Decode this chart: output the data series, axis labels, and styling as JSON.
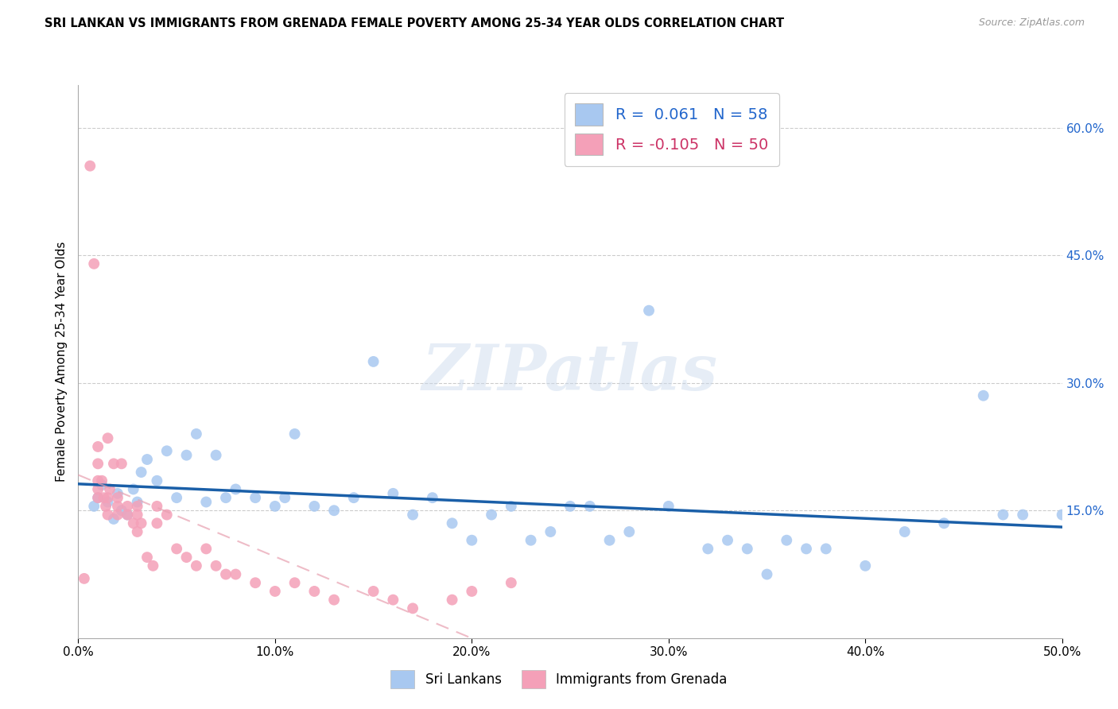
{
  "title": "SRI LANKAN VS IMMIGRANTS FROM GRENADA FEMALE POVERTY AMONG 25-34 YEAR OLDS CORRELATION CHART",
  "source": "Source: ZipAtlas.com",
  "ylabel": "Female Poverty Among 25-34 Year Olds",
  "xlim": [
    0.0,
    0.5
  ],
  "ylim": [
    0.0,
    0.65
  ],
  "xticks": [
    0.0,
    0.1,
    0.2,
    0.3,
    0.4,
    0.5
  ],
  "yticks_right": [
    0.15,
    0.3,
    0.45,
    0.6
  ],
  "grid_ticks": [
    0.15,
    0.3,
    0.45,
    0.6
  ],
  "blue_color": "#a8c8f0",
  "pink_color": "#f4a0b8",
  "blue_line_color": "#1a5fa8",
  "pink_line_color": "#e8a0b0",
  "right_axis_color": "#2266cc",
  "legend_blue_R": " 0.061",
  "legend_blue_N": "58",
  "legend_pink_R": "-0.105",
  "legend_pink_N": "50",
  "legend_label_blue": "Sri Lankans",
  "legend_label_pink": "Immigrants from Grenada",
  "watermark": "ZIPatlas",
  "blue_x": [
    0.008,
    0.01,
    0.012,
    0.015,
    0.018,
    0.02,
    0.022,
    0.025,
    0.028,
    0.03,
    0.032,
    0.035,
    0.04,
    0.045,
    0.05,
    0.055,
    0.06,
    0.065,
    0.07,
    0.075,
    0.08,
    0.09,
    0.1,
    0.105,
    0.11,
    0.12,
    0.13,
    0.14,
    0.15,
    0.16,
    0.17,
    0.18,
    0.19,
    0.2,
    0.21,
    0.22,
    0.23,
    0.24,
    0.25,
    0.26,
    0.27,
    0.28,
    0.29,
    0.3,
    0.32,
    0.33,
    0.34,
    0.35,
    0.36,
    0.37,
    0.38,
    0.4,
    0.42,
    0.44,
    0.46,
    0.47,
    0.48,
    0.5
  ],
  "blue_y": [
    0.155,
    0.165,
    0.18,
    0.16,
    0.14,
    0.17,
    0.15,
    0.145,
    0.175,
    0.16,
    0.195,
    0.21,
    0.185,
    0.22,
    0.165,
    0.215,
    0.24,
    0.16,
    0.215,
    0.165,
    0.175,
    0.165,
    0.155,
    0.165,
    0.24,
    0.155,
    0.15,
    0.165,
    0.325,
    0.17,
    0.145,
    0.165,
    0.135,
    0.115,
    0.145,
    0.155,
    0.115,
    0.125,
    0.155,
    0.155,
    0.115,
    0.125,
    0.385,
    0.155,
    0.105,
    0.115,
    0.105,
    0.075,
    0.115,
    0.105,
    0.105,
    0.085,
    0.125,
    0.135,
    0.285,
    0.145,
    0.145,
    0.145
  ],
  "pink_x": [
    0.003,
    0.006,
    0.008,
    0.01,
    0.01,
    0.01,
    0.01,
    0.01,
    0.012,
    0.013,
    0.014,
    0.015,
    0.015,
    0.015,
    0.016,
    0.018,
    0.02,
    0.02,
    0.02,
    0.022,
    0.025,
    0.025,
    0.028,
    0.03,
    0.03,
    0.03,
    0.032,
    0.035,
    0.038,
    0.04,
    0.04,
    0.045,
    0.05,
    0.055,
    0.06,
    0.065,
    0.07,
    0.075,
    0.08,
    0.09,
    0.1,
    0.11,
    0.12,
    0.13,
    0.15,
    0.16,
    0.17,
    0.19,
    0.2,
    0.22
  ],
  "pink_y": [
    0.07,
    0.555,
    0.44,
    0.165,
    0.175,
    0.185,
    0.205,
    0.225,
    0.185,
    0.165,
    0.155,
    0.145,
    0.165,
    0.235,
    0.175,
    0.205,
    0.145,
    0.155,
    0.165,
    0.205,
    0.145,
    0.155,
    0.135,
    0.155,
    0.125,
    0.145,
    0.135,
    0.095,
    0.085,
    0.135,
    0.155,
    0.145,
    0.105,
    0.095,
    0.085,
    0.105,
    0.085,
    0.075,
    0.075,
    0.065,
    0.055,
    0.065,
    0.055,
    0.045,
    0.055,
    0.045,
    0.035,
    0.045,
    0.055,
    0.065
  ]
}
